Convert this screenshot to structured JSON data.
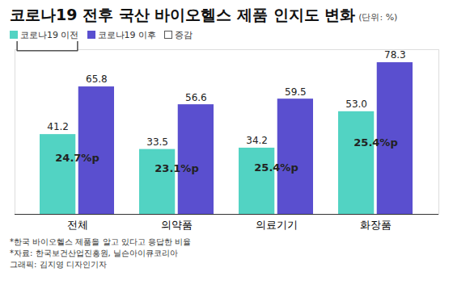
{
  "chart_data": {
    "type": "bar",
    "title": "코로나19 전후 국산 바이오헬스 제품 인지도 변화",
    "subtitle": "(단위: %)",
    "categories": [
      "전체",
      "의약품",
      "의료기기",
      "화장품"
    ],
    "series": [
      {
        "name": "코로나19 이전",
        "color": "#52d3c3",
        "values": [
          41.2,
          33.5,
          34.2,
          53.0
        ],
        "value_labels": [
          "41.2",
          "33.5",
          "34.2",
          "53.0"
        ]
      },
      {
        "name": "코로나19 이후",
        "color": "#5a4fcf",
        "values": [
          65.8,
          56.6,
          59.5,
          78.3
        ],
        "value_labels": [
          "65.8",
          "56.6",
          "59.5",
          "78.3"
        ]
      }
    ],
    "differences": {
      "name": "증감",
      "values": [
        24.7,
        23.1,
        25.4,
        25.4
      ],
      "value_labels": [
        "24.7%p",
        "23.1%p",
        "25.4%p",
        "25.4%p"
      ]
    },
    "ylim": [
      0,
      85
    ],
    "data_labels": true,
    "tick_labels": "x",
    "grid": false,
    "legend": "top-left",
    "notes": [
      "*한국 바이오헬스 제품을 알고 있다고 응답한 비율",
      "*자료: 한국보건산업진흥원, 닐슨아이큐코리아",
      "그래픽: 김지영 디자인기자"
    ]
  }
}
